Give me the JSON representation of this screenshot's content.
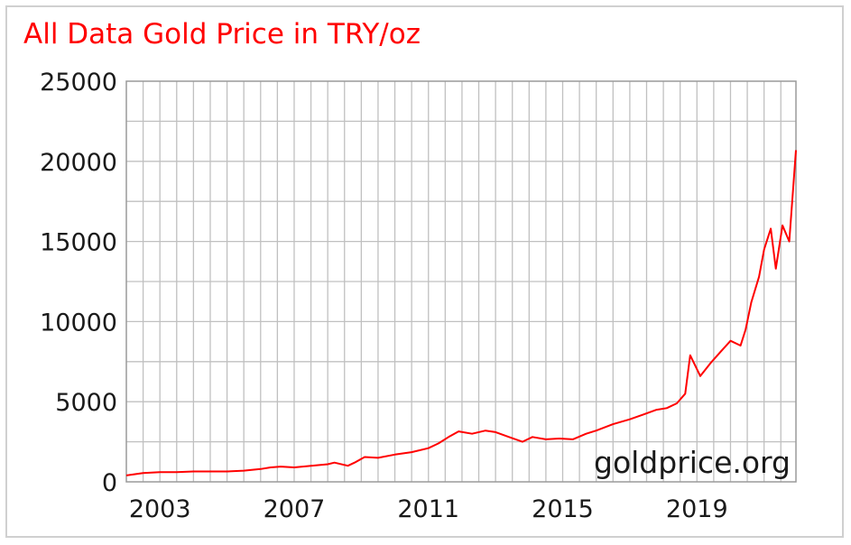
{
  "chart_data": {
    "type": "line",
    "title": "All Data Gold Price in TRY/oz",
    "xlabel": "",
    "ylabel": "",
    "ylim": [
      0,
      25000
    ],
    "xlim": [
      2002.0,
      2021.95
    ],
    "yticks": [
      25000,
      20000,
      15000,
      10000,
      5000,
      0
    ],
    "ytick_labels": [
      "25000",
      "20000",
      "15000",
      "10000",
      "5000",
      "0"
    ],
    "xticks": [
      2003,
      2007,
      2011,
      2015,
      2019
    ],
    "xtick_labels": [
      "2003",
      "2007",
      "2011",
      "2015",
      "2019"
    ],
    "grid": true,
    "watermark": "goldprice.org",
    "colors": {
      "line": "#ff0000",
      "grid": "#c0c0c0",
      "title": "#ff0000"
    },
    "series": [
      {
        "x": [
          2002.0,
          2002.5,
          2003.0,
          2003.5,
          2004.0,
          2004.5,
          2005.0,
          2005.5,
          2006.0,
          2006.3,
          2006.6,
          2007.0,
          2007.5,
          2008.0,
          2008.2,
          2008.6,
          2008.8,
          2009.1,
          2009.5,
          2010.0,
          2010.5,
          2011.0,
          2011.3,
          2011.6,
          2011.9,
          2012.3,
          2012.7,
          2013.0,
          2013.4,
          2013.8,
          2014.1,
          2014.5,
          2014.9,
          2015.3,
          2015.7,
          2016.0,
          2016.5,
          2017.0,
          2017.4,
          2017.8,
          2018.1,
          2018.4,
          2018.65,
          2018.8,
          2019.1,
          2019.4,
          2019.7,
          2020.0,
          2020.3,
          2020.45,
          2020.62,
          2020.85,
          2021.0,
          2021.2,
          2021.35,
          2021.55,
          2021.75,
          2021.95
        ],
        "y": [
          400,
          550,
          600,
          600,
          650,
          650,
          650,
          700,
          800,
          900,
          950,
          900,
          1000,
          1100,
          1200,
          1000,
          1200,
          1550,
          1500,
          1700,
          1850,
          2100,
          2400,
          2800,
          3150,
          3000,
          3200,
          3100,
          2800,
          2500,
          2800,
          2650,
          2700,
          2650,
          3000,
          3200,
          3600,
          3900,
          4200,
          4500,
          4600,
          4900,
          5500,
          7900,
          6600,
          7400,
          8100,
          8800,
          8500,
          9500,
          11200,
          12800,
          14500,
          15800,
          13300,
          16000,
          15000,
          20700
        ]
      }
    ]
  }
}
